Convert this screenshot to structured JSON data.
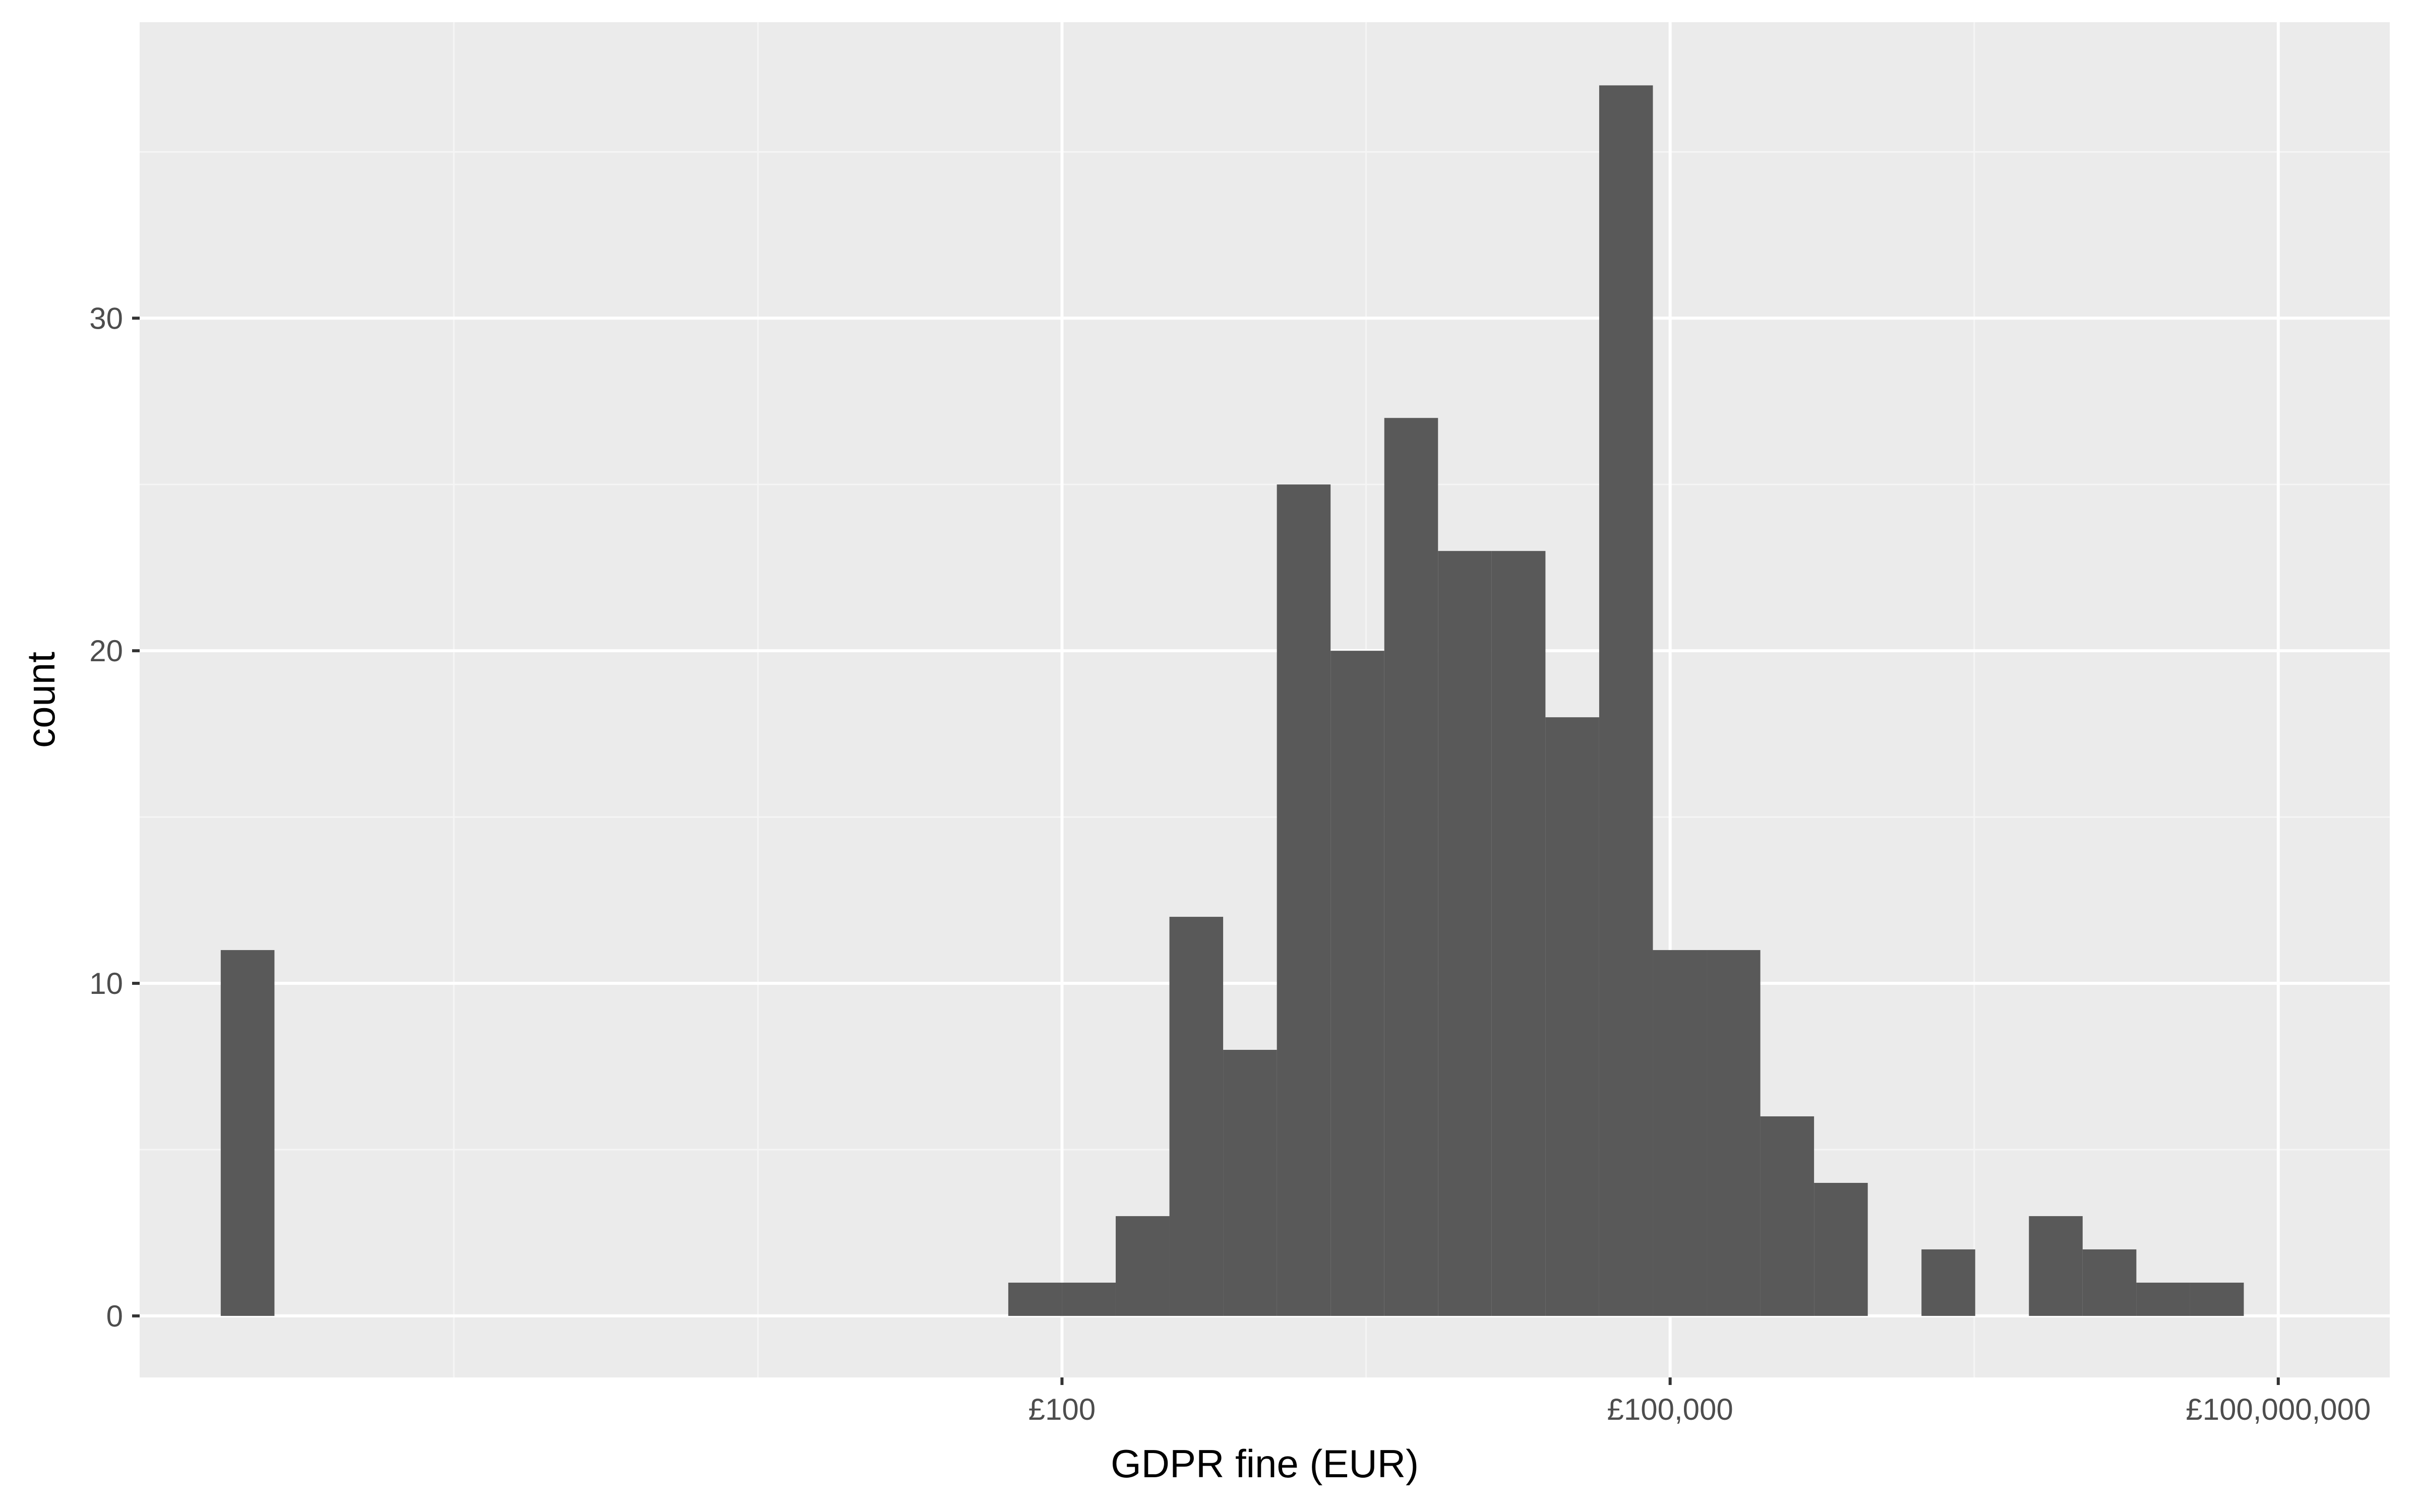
{
  "chart_data": {
    "type": "bar",
    "title": "",
    "xlabel": "GDPR fine (EUR)",
    "ylabel": "count",
    "x_scale": "log10",
    "xlim_log10": [
      -2.55,
      8.55
    ],
    "ylim": [
      -1.85,
      38.9
    ],
    "x_ticks": [
      {
        "label": "£100",
        "log10": 2
      },
      {
        "label": "£100,000",
        "log10": 5
      },
      {
        "label": "£100,000,000",
        "log10": 8
      }
    ],
    "x_minor_log10": [
      -1,
      0.5,
      3.5,
      6.5
    ],
    "y_ticks": [
      0,
      10,
      20,
      30
    ],
    "y_minor": [
      5,
      15,
      25,
      35
    ],
    "bin_width_log10": 0.265,
    "bins": [
      {
        "log10_start": -2.15,
        "count": 11
      },
      {
        "log10_start": -1.885,
        "count": 0
      },
      {
        "log10_start": -1.62,
        "count": 0
      },
      {
        "log10_start": -1.355,
        "count": 0
      },
      {
        "log10_start": -1.09,
        "count": 0
      },
      {
        "log10_start": -0.825,
        "count": 0
      },
      {
        "log10_start": -0.56,
        "count": 0
      },
      {
        "log10_start": -0.295,
        "count": 0
      },
      {
        "log10_start": -0.03,
        "count": 0
      },
      {
        "log10_start": 0.235,
        "count": 0
      },
      {
        "log10_start": 0.5,
        "count": 0
      },
      {
        "log10_start": 0.765,
        "count": 0
      },
      {
        "log10_start": 1.03,
        "count": 0
      },
      {
        "log10_start": 1.295,
        "count": 0
      },
      {
        "log10_start": 1.56,
        "count": 0
      },
      {
        "log10_start": 1.735,
        "count": 1
      },
      {
        "log10_start": 2.0,
        "count": 1
      },
      {
        "log10_start": 2.265,
        "count": 3
      },
      {
        "log10_start": 2.53,
        "count": 12
      },
      {
        "log10_start": 2.795,
        "count": 8
      },
      {
        "log10_start": 3.06,
        "count": 25
      },
      {
        "log10_start": 3.325,
        "count": 20
      },
      {
        "log10_start": 3.59,
        "count": 27
      },
      {
        "log10_start": 3.855,
        "count": 23
      },
      {
        "log10_start": 4.12,
        "count": 23
      },
      {
        "log10_start": 4.385,
        "count": 18
      },
      {
        "log10_start": 4.65,
        "count": 37
      },
      {
        "log10_start": 4.915,
        "count": 11
      },
      {
        "log10_start": 5.18,
        "count": 11
      },
      {
        "log10_start": 5.445,
        "count": 6
      },
      {
        "log10_start": 5.71,
        "count": 4
      },
      {
        "log10_start": 5.975,
        "count": 0
      },
      {
        "log10_start": 6.24,
        "count": 2
      },
      {
        "log10_start": 6.505,
        "count": 0
      },
      {
        "log10_start": 6.77,
        "count": 3
      },
      {
        "log10_start": 7.035,
        "count": 2
      },
      {
        "log10_start": 7.3,
        "count": 1
      },
      {
        "log10_start": 7.565,
        "count": 1
      }
    ],
    "colors": {
      "panel": "#ebebeb",
      "grid_major": "#ffffff",
      "grid_minor": "#f5f5f5",
      "bar": "#595959",
      "tick": "#333333",
      "tick_text": "#4d4d4d",
      "title_text": "#000000"
    }
  }
}
